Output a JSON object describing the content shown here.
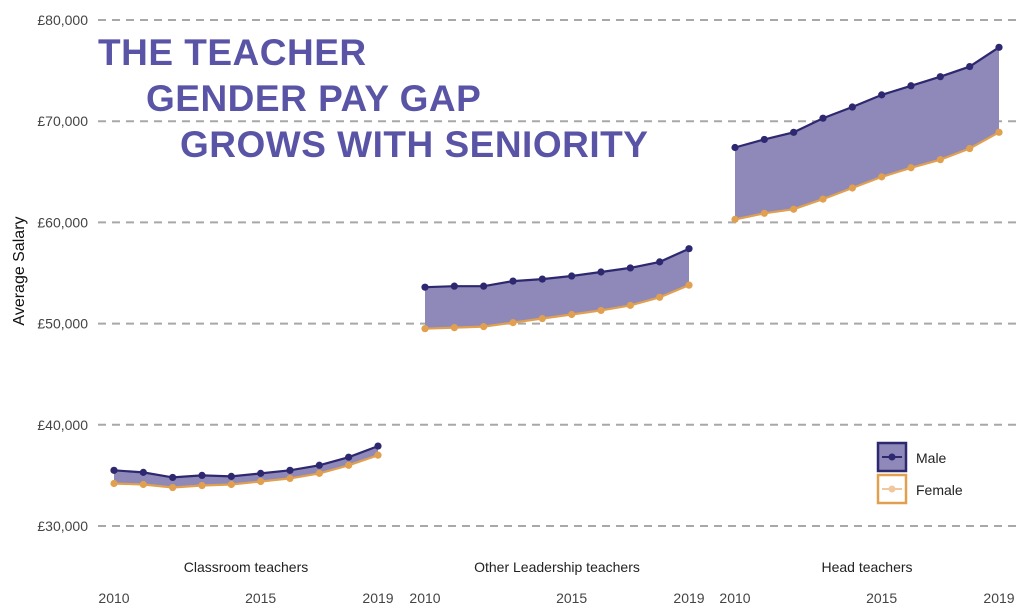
{
  "title_lines": [
    "THE TEACHER",
    "GENDER PAY GAP",
    "GROWS WITH SENIORITY"
  ],
  "chart_data": {
    "type": "line",
    "ylabel": "Average Salary",
    "ylim": [
      28000,
      81000
    ],
    "y_ticks": [
      30000,
      40000,
      50000,
      60000,
      70000,
      80000
    ],
    "y_tick_labels": [
      "£30,000",
      "£40,000",
      "£50,000",
      "£60,000",
      "£70,000",
      "£80,000"
    ],
    "x": [
      2010,
      2011,
      2012,
      2013,
      2014,
      2015,
      2016,
      2017,
      2018,
      2019
    ],
    "x_tick_labels": [
      "2010",
      "2015",
      "2019"
    ],
    "grid": "horizontal dashed",
    "legend_position": "bottom-right",
    "legend": [
      {
        "name": "Male",
        "color": "#2e2870"
      },
      {
        "name": "Female",
        "color": "#e0a050"
      }
    ],
    "colors": {
      "male": "#2e2870",
      "female": "#e0a050",
      "gap_fill": "#8e89b8"
    },
    "panels": [
      {
        "label": "Classroom teachers",
        "series": [
          {
            "name": "Male",
            "values": [
              35500,
              35300,
              34800,
              35000,
              34900,
              35200,
              35500,
              36000,
              36800,
              37900
            ]
          },
          {
            "name": "Female",
            "values": [
              34200,
              34100,
              33800,
              34000,
              34100,
              34400,
              34700,
              35200,
              36000,
              37000
            ]
          }
        ]
      },
      {
        "label": "Other Leadership teachers",
        "series": [
          {
            "name": "Male",
            "values": [
              53600,
              53700,
              53700,
              54200,
              54400,
              54700,
              55100,
              55500,
              56100,
              57400
            ]
          },
          {
            "name": "Female",
            "values": [
              49500,
              49600,
              49700,
              50100,
              50500,
              50900,
              51300,
              51800,
              52600,
              53800
            ]
          }
        ]
      },
      {
        "label": "Head teachers",
        "series": [
          {
            "name": "Male",
            "values": [
              67400,
              68200,
              68900,
              70300,
              71400,
              72600,
              73500,
              74400,
              75400,
              77300
            ]
          },
          {
            "name": "Female",
            "values": [
              60300,
              60900,
              61300,
              62300,
              63400,
              64500,
              65400,
              66200,
              67300,
              68900
            ]
          }
        ]
      }
    ]
  }
}
